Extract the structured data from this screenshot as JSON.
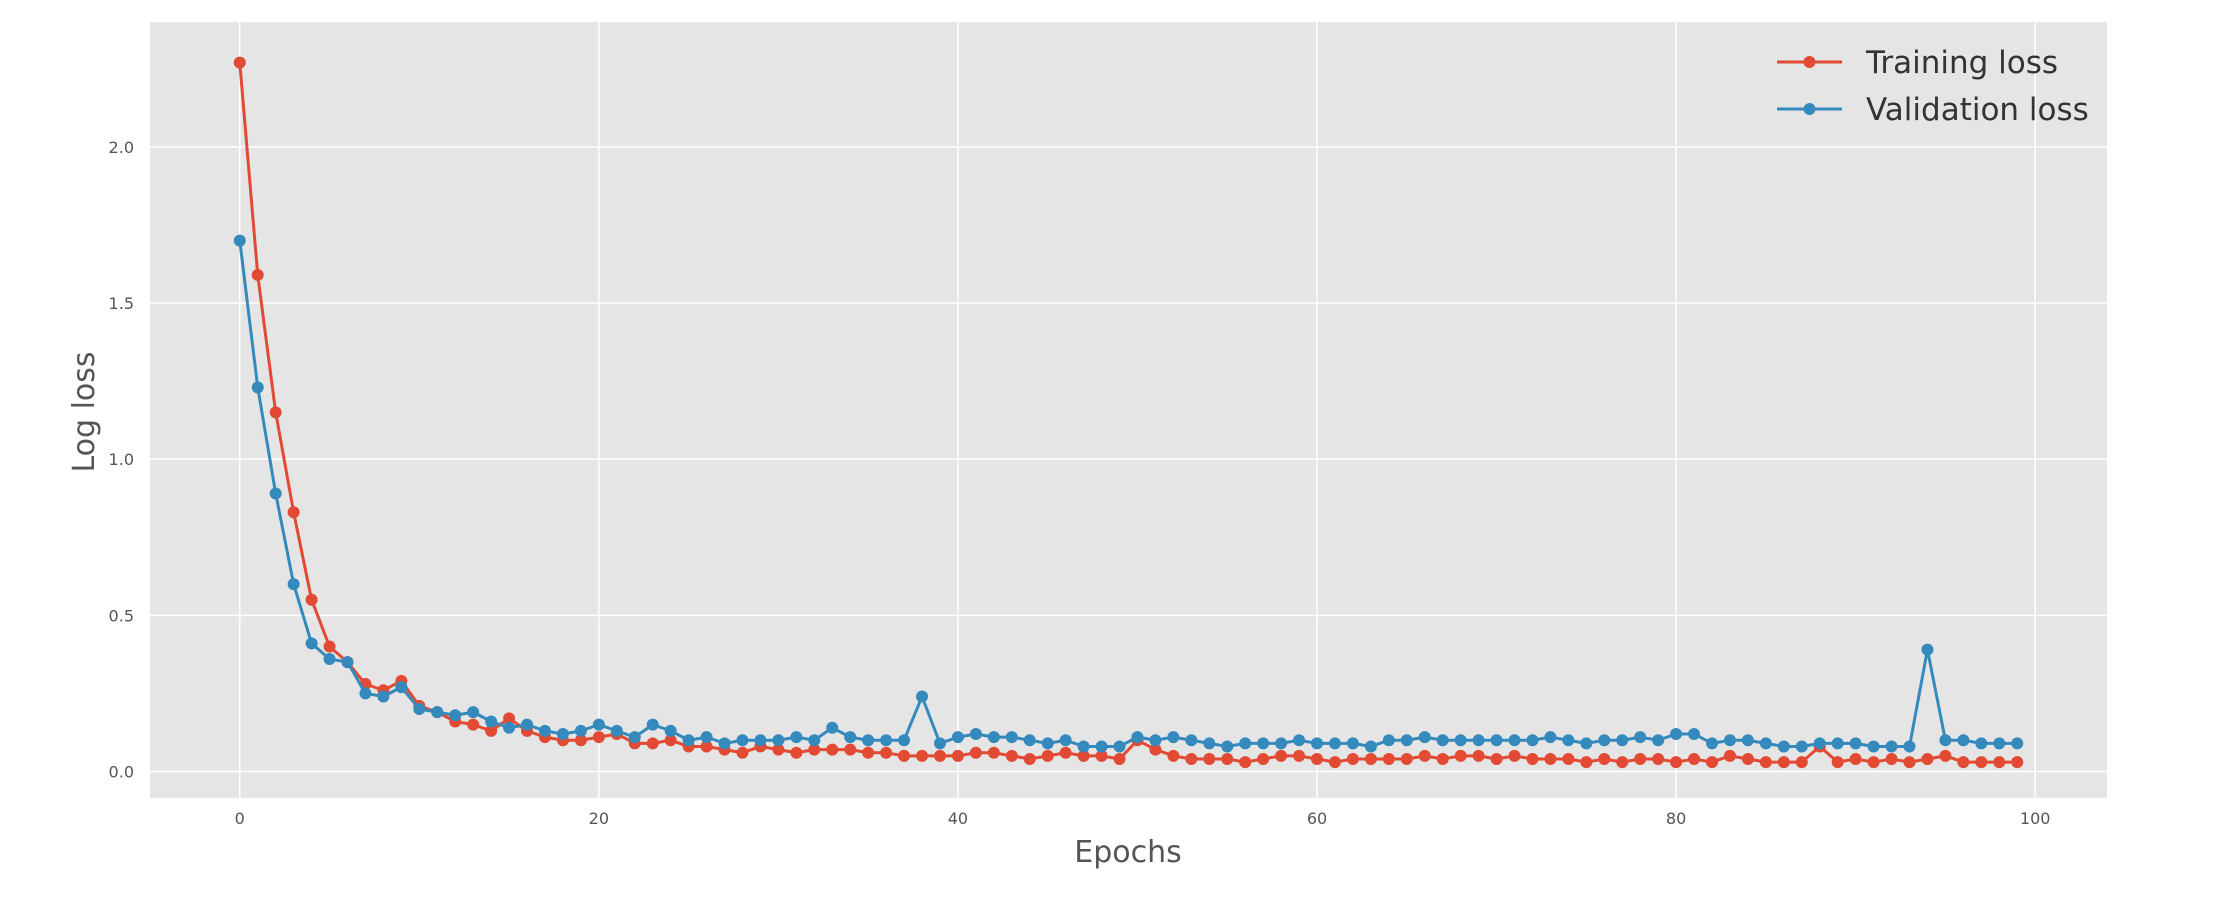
{
  "chart_data": {
    "type": "line",
    "title": "",
    "xlabel": "Epochs",
    "ylabel": "Log loss",
    "xlim": [
      -5,
      104
    ],
    "ylim": [
      -0.085,
      2.4
    ],
    "xticks": [
      0,
      20,
      40,
      60,
      80,
      100
    ],
    "xtick_labels": [
      "0",
      "20",
      "40",
      "60",
      "80",
      "100"
    ],
    "yticks": [
      0.0,
      0.5,
      1.0,
      1.5,
      2.0
    ],
    "ytick_labels": [
      "0.0",
      "0.5",
      "1.0",
      "1.5",
      "2.0"
    ],
    "grid": true,
    "legend_position": "top-right",
    "x": [
      0,
      1,
      2,
      3,
      4,
      5,
      6,
      7,
      8,
      9,
      10,
      11,
      12,
      13,
      14,
      15,
      16,
      17,
      18,
      19,
      20,
      21,
      22,
      23,
      24,
      25,
      26,
      27,
      28,
      29,
      30,
      31,
      32,
      33,
      34,
      35,
      36,
      37,
      38,
      39,
      40,
      41,
      42,
      43,
      44,
      45,
      46,
      47,
      48,
      49,
      50,
      51,
      52,
      53,
      54,
      55,
      56,
      57,
      58,
      59,
      60,
      61,
      62,
      63,
      64,
      65,
      66,
      67,
      68,
      69,
      70,
      71,
      72,
      73,
      74,
      75,
      76,
      77,
      78,
      79,
      80,
      81,
      82,
      83,
      84,
      85,
      86,
      87,
      88,
      89,
      90,
      91,
      92,
      93,
      94,
      95,
      96,
      97,
      98,
      99
    ],
    "series": [
      {
        "name": "Training loss",
        "color": "#E24A33",
        "values": [
          2.27,
          1.59,
          1.15,
          0.83,
          0.55,
          0.4,
          0.35,
          0.28,
          0.26,
          0.29,
          0.21,
          0.19,
          0.16,
          0.15,
          0.13,
          0.17,
          0.13,
          0.11,
          0.1,
          0.1,
          0.11,
          0.12,
          0.09,
          0.09,
          0.1,
          0.08,
          0.08,
          0.07,
          0.06,
          0.08,
          0.07,
          0.06,
          0.07,
          0.07,
          0.07,
          0.06,
          0.06,
          0.05,
          0.05,
          0.05,
          0.05,
          0.06,
          0.06,
          0.05,
          0.04,
          0.05,
          0.06,
          0.05,
          0.05,
          0.04,
          0.1,
          0.07,
          0.05,
          0.04,
          0.04,
          0.04,
          0.03,
          0.04,
          0.05,
          0.05,
          0.04,
          0.03,
          0.04,
          0.04,
          0.04,
          0.04,
          0.05,
          0.04,
          0.05,
          0.05,
          0.04,
          0.05,
          0.04,
          0.04,
          0.04,
          0.03,
          0.04,
          0.03,
          0.04,
          0.04,
          0.03,
          0.04,
          0.03,
          0.05,
          0.04,
          0.03,
          0.03,
          0.03,
          0.08,
          0.03,
          0.04,
          0.03,
          0.04,
          0.03,
          0.04,
          0.05,
          0.03,
          0.03,
          0.03,
          0.03
        ]
      },
      {
        "name": "Validation loss",
        "color": "#348ABD",
        "values": [
          1.7,
          1.23,
          0.89,
          0.6,
          0.41,
          0.36,
          0.35,
          0.25,
          0.24,
          0.27,
          0.2,
          0.19,
          0.18,
          0.19,
          0.16,
          0.14,
          0.15,
          0.13,
          0.12,
          0.13,
          0.15,
          0.13,
          0.11,
          0.15,
          0.13,
          0.1,
          0.11,
          0.09,
          0.1,
          0.1,
          0.1,
          0.11,
          0.1,
          0.14,
          0.11,
          0.1,
          0.1,
          0.1,
          0.24,
          0.09,
          0.11,
          0.12,
          0.11,
          0.11,
          0.1,
          0.09,
          0.1,
          0.08,
          0.08,
          0.08,
          0.11,
          0.1,
          0.11,
          0.1,
          0.09,
          0.08,
          0.09,
          0.09,
          0.09,
          0.1,
          0.09,
          0.09,
          0.09,
          0.08,
          0.1,
          0.1,
          0.11,
          0.1,
          0.1,
          0.1,
          0.1,
          0.1,
          0.1,
          0.11,
          0.1,
          0.09,
          0.1,
          0.1,
          0.11,
          0.1,
          0.12,
          0.12,
          0.09,
          0.1,
          0.1,
          0.09,
          0.08,
          0.08,
          0.09,
          0.09,
          0.09,
          0.08,
          0.08,
          0.08,
          0.39,
          0.1,
          0.1,
          0.09,
          0.09,
          0.09
        ]
      }
    ]
  }
}
